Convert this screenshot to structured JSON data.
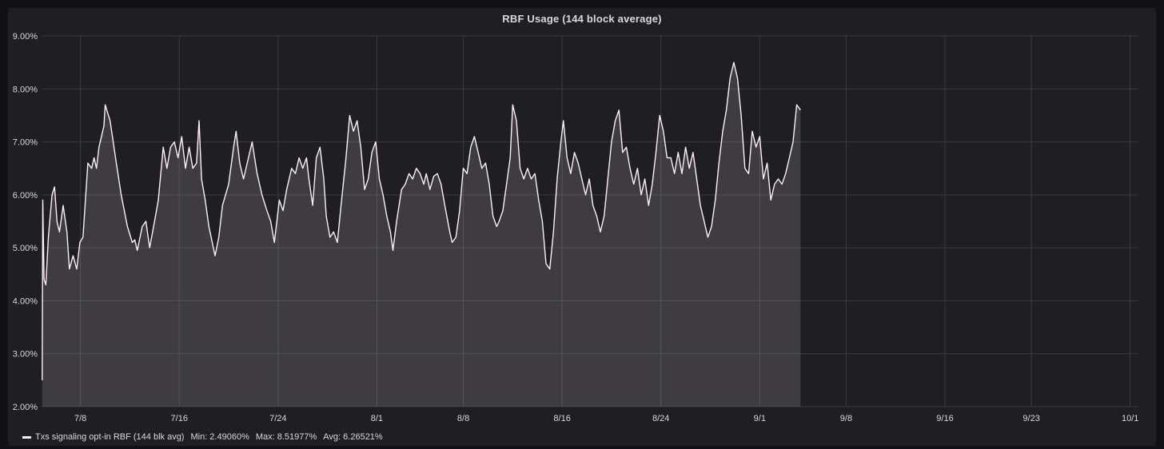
{
  "chart_data": {
    "type": "area",
    "title": "RBF Usage (144 block average)",
    "ylim": [
      2,
      9
    ],
    "y_tick_labels": [
      "2.00%",
      "3.00%",
      "4.00%",
      "5.00%",
      "6.00%",
      "7.00%",
      "8.00%",
      "9.00%"
    ],
    "x_tick_labels": [
      "7/8",
      "7/16",
      "7/24",
      "8/1",
      "8/8",
      "8/16",
      "8/24",
      "9/1",
      "9/8",
      "9/16",
      "9/23",
      "10/1"
    ],
    "x_tick_days": [
      7,
      15,
      23,
      31,
      38,
      46,
      54,
      62,
      69,
      77,
      84,
      92
    ],
    "x_range_days": [
      3.85,
      92.6
    ],
    "grid": true,
    "legend_position": "bottom-left",
    "series": [
      {
        "name": "Txs signaling opt-in RBF (144 blk avg)",
        "color": "#ffeefb",
        "points": [
          [
            3.9,
            2.5
          ],
          [
            3.95,
            5.9
          ],
          [
            4.05,
            4.4
          ],
          [
            4.2,
            4.3
          ],
          [
            4.4,
            5.2
          ],
          [
            4.7,
            6.0
          ],
          [
            4.9,
            6.15
          ],
          [
            5.1,
            5.5
          ],
          [
            5.3,
            5.3
          ],
          [
            5.6,
            5.8
          ],
          [
            5.9,
            5.3
          ],
          [
            6.1,
            4.6
          ],
          [
            6.4,
            4.85
          ],
          [
            6.7,
            4.6
          ],
          [
            6.95,
            5.1
          ],
          [
            7.2,
            5.2
          ],
          [
            7.6,
            6.6
          ],
          [
            7.9,
            6.5
          ],
          [
            8.1,
            6.7
          ],
          [
            8.3,
            6.5
          ],
          [
            8.5,
            6.9
          ],
          [
            8.9,
            7.3
          ],
          [
            9.0,
            7.7
          ],
          [
            9.4,
            7.4
          ],
          [
            9.9,
            6.6
          ],
          [
            10.3,
            6.0
          ],
          [
            10.8,
            5.4
          ],
          [
            11.2,
            5.1
          ],
          [
            11.4,
            5.15
          ],
          [
            11.6,
            4.95
          ],
          [
            12.0,
            5.4
          ],
          [
            12.3,
            5.5
          ],
          [
            12.6,
            5.0
          ],
          [
            13.0,
            5.5
          ],
          [
            13.3,
            5.9
          ],
          [
            13.7,
            6.9
          ],
          [
            14.0,
            6.5
          ],
          [
            14.3,
            6.9
          ],
          [
            14.6,
            7.0
          ],
          [
            14.9,
            6.7
          ],
          [
            15.2,
            7.1
          ],
          [
            15.5,
            6.5
          ],
          [
            15.8,
            6.9
          ],
          [
            16.1,
            6.5
          ],
          [
            16.4,
            6.6
          ],
          [
            16.6,
            7.4
          ],
          [
            16.8,
            6.3
          ],
          [
            17.1,
            5.9
          ],
          [
            17.4,
            5.4
          ],
          [
            17.9,
            4.85
          ],
          [
            18.2,
            5.2
          ],
          [
            18.5,
            5.8
          ],
          [
            19.0,
            6.2
          ],
          [
            19.4,
            6.9
          ],
          [
            19.6,
            7.2
          ],
          [
            19.9,
            6.6
          ],
          [
            20.2,
            6.3
          ],
          [
            20.6,
            6.7
          ],
          [
            20.9,
            7.0
          ],
          [
            21.3,
            6.4
          ],
          [
            21.7,
            6.0
          ],
          [
            22.1,
            5.7
          ],
          [
            22.4,
            5.5
          ],
          [
            22.7,
            5.1
          ],
          [
            23.1,
            5.9
          ],
          [
            23.4,
            5.7
          ],
          [
            23.7,
            6.1
          ],
          [
            24.1,
            6.5
          ],
          [
            24.4,
            6.4
          ],
          [
            24.7,
            6.7
          ],
          [
            25.0,
            6.5
          ],
          [
            25.3,
            6.7
          ],
          [
            25.5,
            6.3
          ],
          [
            25.8,
            5.8
          ],
          [
            26.1,
            6.7
          ],
          [
            26.4,
            6.9
          ],
          [
            26.7,
            6.3
          ],
          [
            26.9,
            5.6
          ],
          [
            27.2,
            5.2
          ],
          [
            27.5,
            5.3
          ],
          [
            27.8,
            5.1
          ],
          [
            28.1,
            5.8
          ],
          [
            28.5,
            6.7
          ],
          [
            28.8,
            7.5
          ],
          [
            29.1,
            7.2
          ],
          [
            29.4,
            7.4
          ],
          [
            29.7,
            6.9
          ],
          [
            30.0,
            6.1
          ],
          [
            30.3,
            6.3
          ],
          [
            30.6,
            6.8
          ],
          [
            30.9,
            7.0
          ],
          [
            31.2,
            6.3
          ],
          [
            31.5,
            6.0
          ],
          [
            31.8,
            5.6
          ],
          [
            32.1,
            5.3
          ],
          [
            32.3,
            4.95
          ],
          [
            32.6,
            5.5
          ],
          [
            33.0,
            6.1
          ],
          [
            33.3,
            6.2
          ],
          [
            33.6,
            6.4
          ],
          [
            33.9,
            6.3
          ],
          [
            34.2,
            6.5
          ],
          [
            34.5,
            6.4
          ],
          [
            34.8,
            6.2
          ],
          [
            35.0,
            6.4
          ],
          [
            35.3,
            6.1
          ],
          [
            35.6,
            6.35
          ],
          [
            35.9,
            6.4
          ],
          [
            36.2,
            6.2
          ],
          [
            36.5,
            5.8
          ],
          [
            36.9,
            5.3
          ],
          [
            37.1,
            5.1
          ],
          [
            37.4,
            5.2
          ],
          [
            37.7,
            5.7
          ],
          [
            38.0,
            6.5
          ],
          [
            38.3,
            6.4
          ],
          [
            38.6,
            6.9
          ],
          [
            38.9,
            7.1
          ],
          [
            39.2,
            6.8
          ],
          [
            39.5,
            6.5
          ],
          [
            39.8,
            6.6
          ],
          [
            40.1,
            6.2
          ],
          [
            40.4,
            5.6
          ],
          [
            40.7,
            5.4
          ],
          [
            40.9,
            5.5
          ],
          [
            41.2,
            5.7
          ],
          [
            41.5,
            6.2
          ],
          [
            41.8,
            6.7
          ],
          [
            42.0,
            7.7
          ],
          [
            42.3,
            7.4
          ],
          [
            42.6,
            6.5
          ],
          [
            42.9,
            6.3
          ],
          [
            43.2,
            6.5
          ],
          [
            43.5,
            6.3
          ],
          [
            43.8,
            6.4
          ],
          [
            44.1,
            5.9
          ],
          [
            44.4,
            5.5
          ],
          [
            44.7,
            4.7
          ],
          [
            45.0,
            4.6
          ],
          [
            45.3,
            5.3
          ],
          [
            45.6,
            6.3
          ],
          [
            45.9,
            7.0
          ],
          [
            46.1,
            7.4
          ],
          [
            46.4,
            6.7
          ],
          [
            46.7,
            6.4
          ],
          [
            47.0,
            6.8
          ],
          [
            47.3,
            6.6
          ],
          [
            47.6,
            6.3
          ],
          [
            47.9,
            6.0
          ],
          [
            48.2,
            6.3
          ],
          [
            48.5,
            5.8
          ],
          [
            48.8,
            5.6
          ],
          [
            49.1,
            5.3
          ],
          [
            49.4,
            5.6
          ],
          [
            49.7,
            6.3
          ],
          [
            50.0,
            7.0
          ],
          [
            50.3,
            7.4
          ],
          [
            50.6,
            7.6
          ],
          [
            50.9,
            6.8
          ],
          [
            51.2,
            6.9
          ],
          [
            51.5,
            6.5
          ],
          [
            51.8,
            6.2
          ],
          [
            52.1,
            6.5
          ],
          [
            52.4,
            6.0
          ],
          [
            52.7,
            6.3
          ],
          [
            53.0,
            5.8
          ],
          [
            53.3,
            6.2
          ],
          [
            53.6,
            6.8
          ],
          [
            53.9,
            7.5
          ],
          [
            54.2,
            7.2
          ],
          [
            54.5,
            6.7
          ],
          [
            54.8,
            6.7
          ],
          [
            55.1,
            6.4
          ],
          [
            55.4,
            6.8
          ],
          [
            55.7,
            6.4
          ],
          [
            56.0,
            6.9
          ],
          [
            56.3,
            6.5
          ],
          [
            56.6,
            6.8
          ],
          [
            56.9,
            6.3
          ],
          [
            57.2,
            5.8
          ],
          [
            57.5,
            5.5
          ],
          [
            57.8,
            5.2
          ],
          [
            58.1,
            5.4
          ],
          [
            58.4,
            5.9
          ],
          [
            58.7,
            6.6
          ],
          [
            59.0,
            7.2
          ],
          [
            59.3,
            7.6
          ],
          [
            59.6,
            8.2
          ],
          [
            59.9,
            8.5
          ],
          [
            60.2,
            8.2
          ],
          [
            60.5,
            7.5
          ],
          [
            60.8,
            6.5
          ],
          [
            61.1,
            6.4
          ],
          [
            61.4,
            7.2
          ],
          [
            61.7,
            6.9
          ],
          [
            62.0,
            7.1
          ],
          [
            62.3,
            6.3
          ],
          [
            62.6,
            6.6
          ],
          [
            62.9,
            5.9
          ],
          [
            63.2,
            6.2
          ],
          [
            63.5,
            6.3
          ],
          [
            63.8,
            6.2
          ],
          [
            64.1,
            6.4
          ],
          [
            64.4,
            6.7
          ],
          [
            64.7,
            7.0
          ],
          [
            65.0,
            7.7
          ],
          [
            65.3,
            7.6
          ]
        ],
        "min_label": "Min: 2.49060%",
        "max_label": "Max: 8.51977%",
        "avg_label": "Avg: 6.26521%"
      }
    ]
  }
}
